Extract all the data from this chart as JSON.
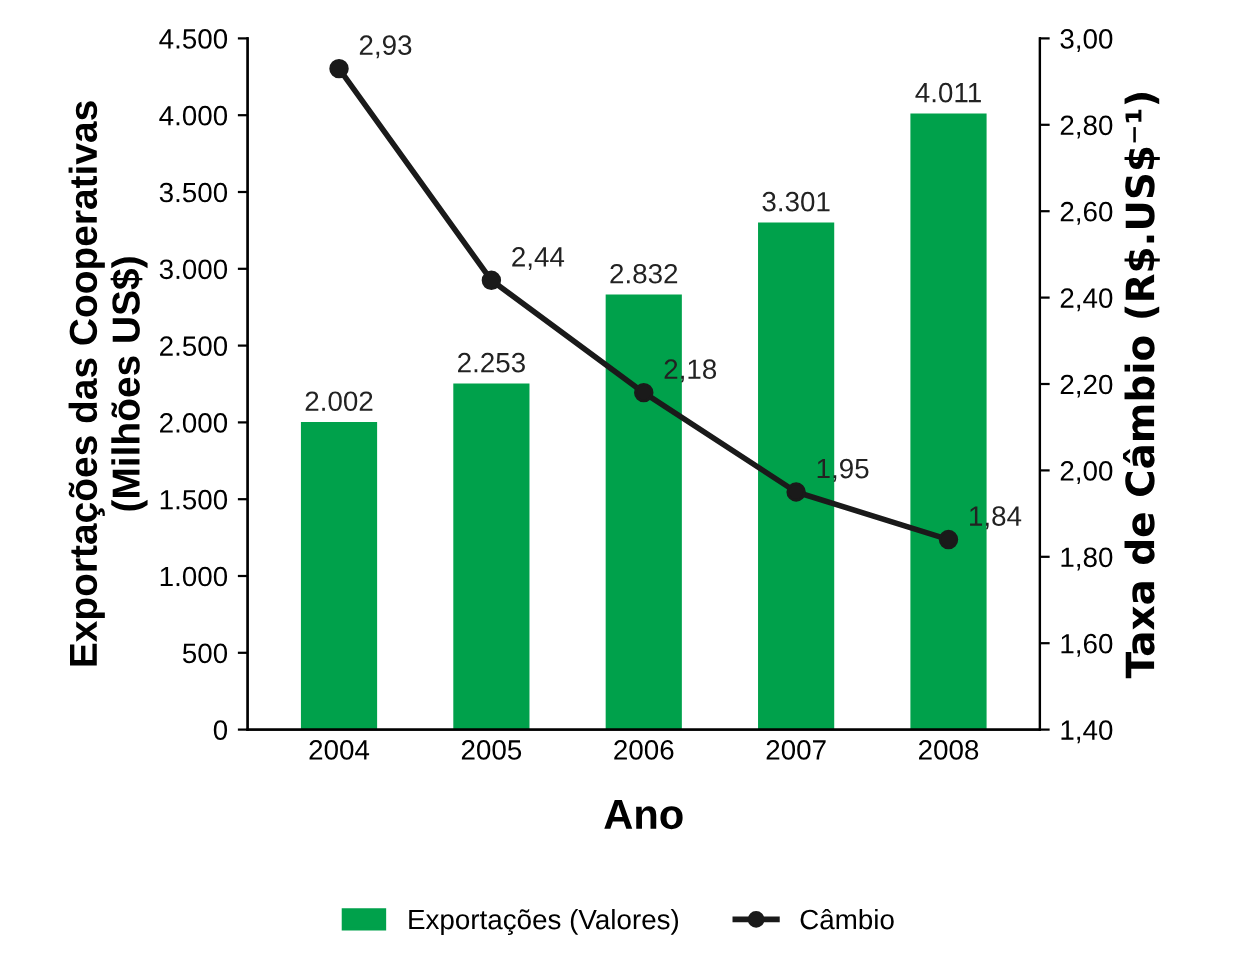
{
  "chart_data": {
    "type": "bar",
    "xlabel": "Ano",
    "ylabel": "Exportações das Cooperativas\n(Milhões US$)",
    "y2label": "Taxa de Câmbio (R$.US$⁻¹)",
    "categories": [
      "2004",
      "2005",
      "2006",
      "2007",
      "2008"
    ],
    "series": [
      {
        "name": "Exportações (Valores)",
        "color": "#00a14b",
        "values": [
          2002,
          2253,
          2832,
          3301,
          4011
        ],
        "value_labels": [
          "2.002",
          "2.253",
          "2.832",
          "3.301",
          "4.011"
        ]
      },
      {
        "name": "Câmbio",
        "type": "line",
        "axis": "y2",
        "color": "#1a1a1a",
        "marker": "circle",
        "line_style": "solid",
        "values": [
          2.93,
          2.44,
          2.18,
          1.95,
          1.84
        ],
        "value_labels": [
          "2,93",
          "2,44",
          "2,18",
          "1,95",
          "1,84"
        ]
      }
    ],
    "ylim": [
      0,
      4500
    ],
    "yticks": [
      0,
      500,
      {
        "value": 1000,
        "label": "1.000"
      },
      {
        "value": 1500,
        "label": "1.500"
      },
      {
        "value": 2000,
        "label": "2.000"
      },
      {
        "value": 2500,
        "label": "2.500"
      },
      {
        "value": 3000,
        "label": "3.000"
      },
      {
        "value": 3500,
        "label": "3.500"
      },
      {
        "value": 4000,
        "label": "4.000"
      },
      {
        "value": 4500,
        "label": "4.500"
      }
    ],
    "y2lim": [
      1.4,
      3.0
    ],
    "y2ticks": [
      {
        "value": 1.4,
        "label": "1,40"
      },
      {
        "value": 1.6,
        "label": "1,60"
      },
      {
        "value": 1.8,
        "label": "1,80"
      },
      {
        "value": 2.0,
        "label": "2,00"
      },
      {
        "value": 2.2,
        "label": "2,20"
      },
      {
        "value": 2.4,
        "label": "2,40"
      },
      {
        "value": 2.6,
        "label": "2,60"
      },
      {
        "value": 2.8,
        "label": "2,80"
      },
      {
        "value": 3.0,
        "label": "3,00"
      }
    ],
    "grid": false,
    "legend": "bottom"
  }
}
